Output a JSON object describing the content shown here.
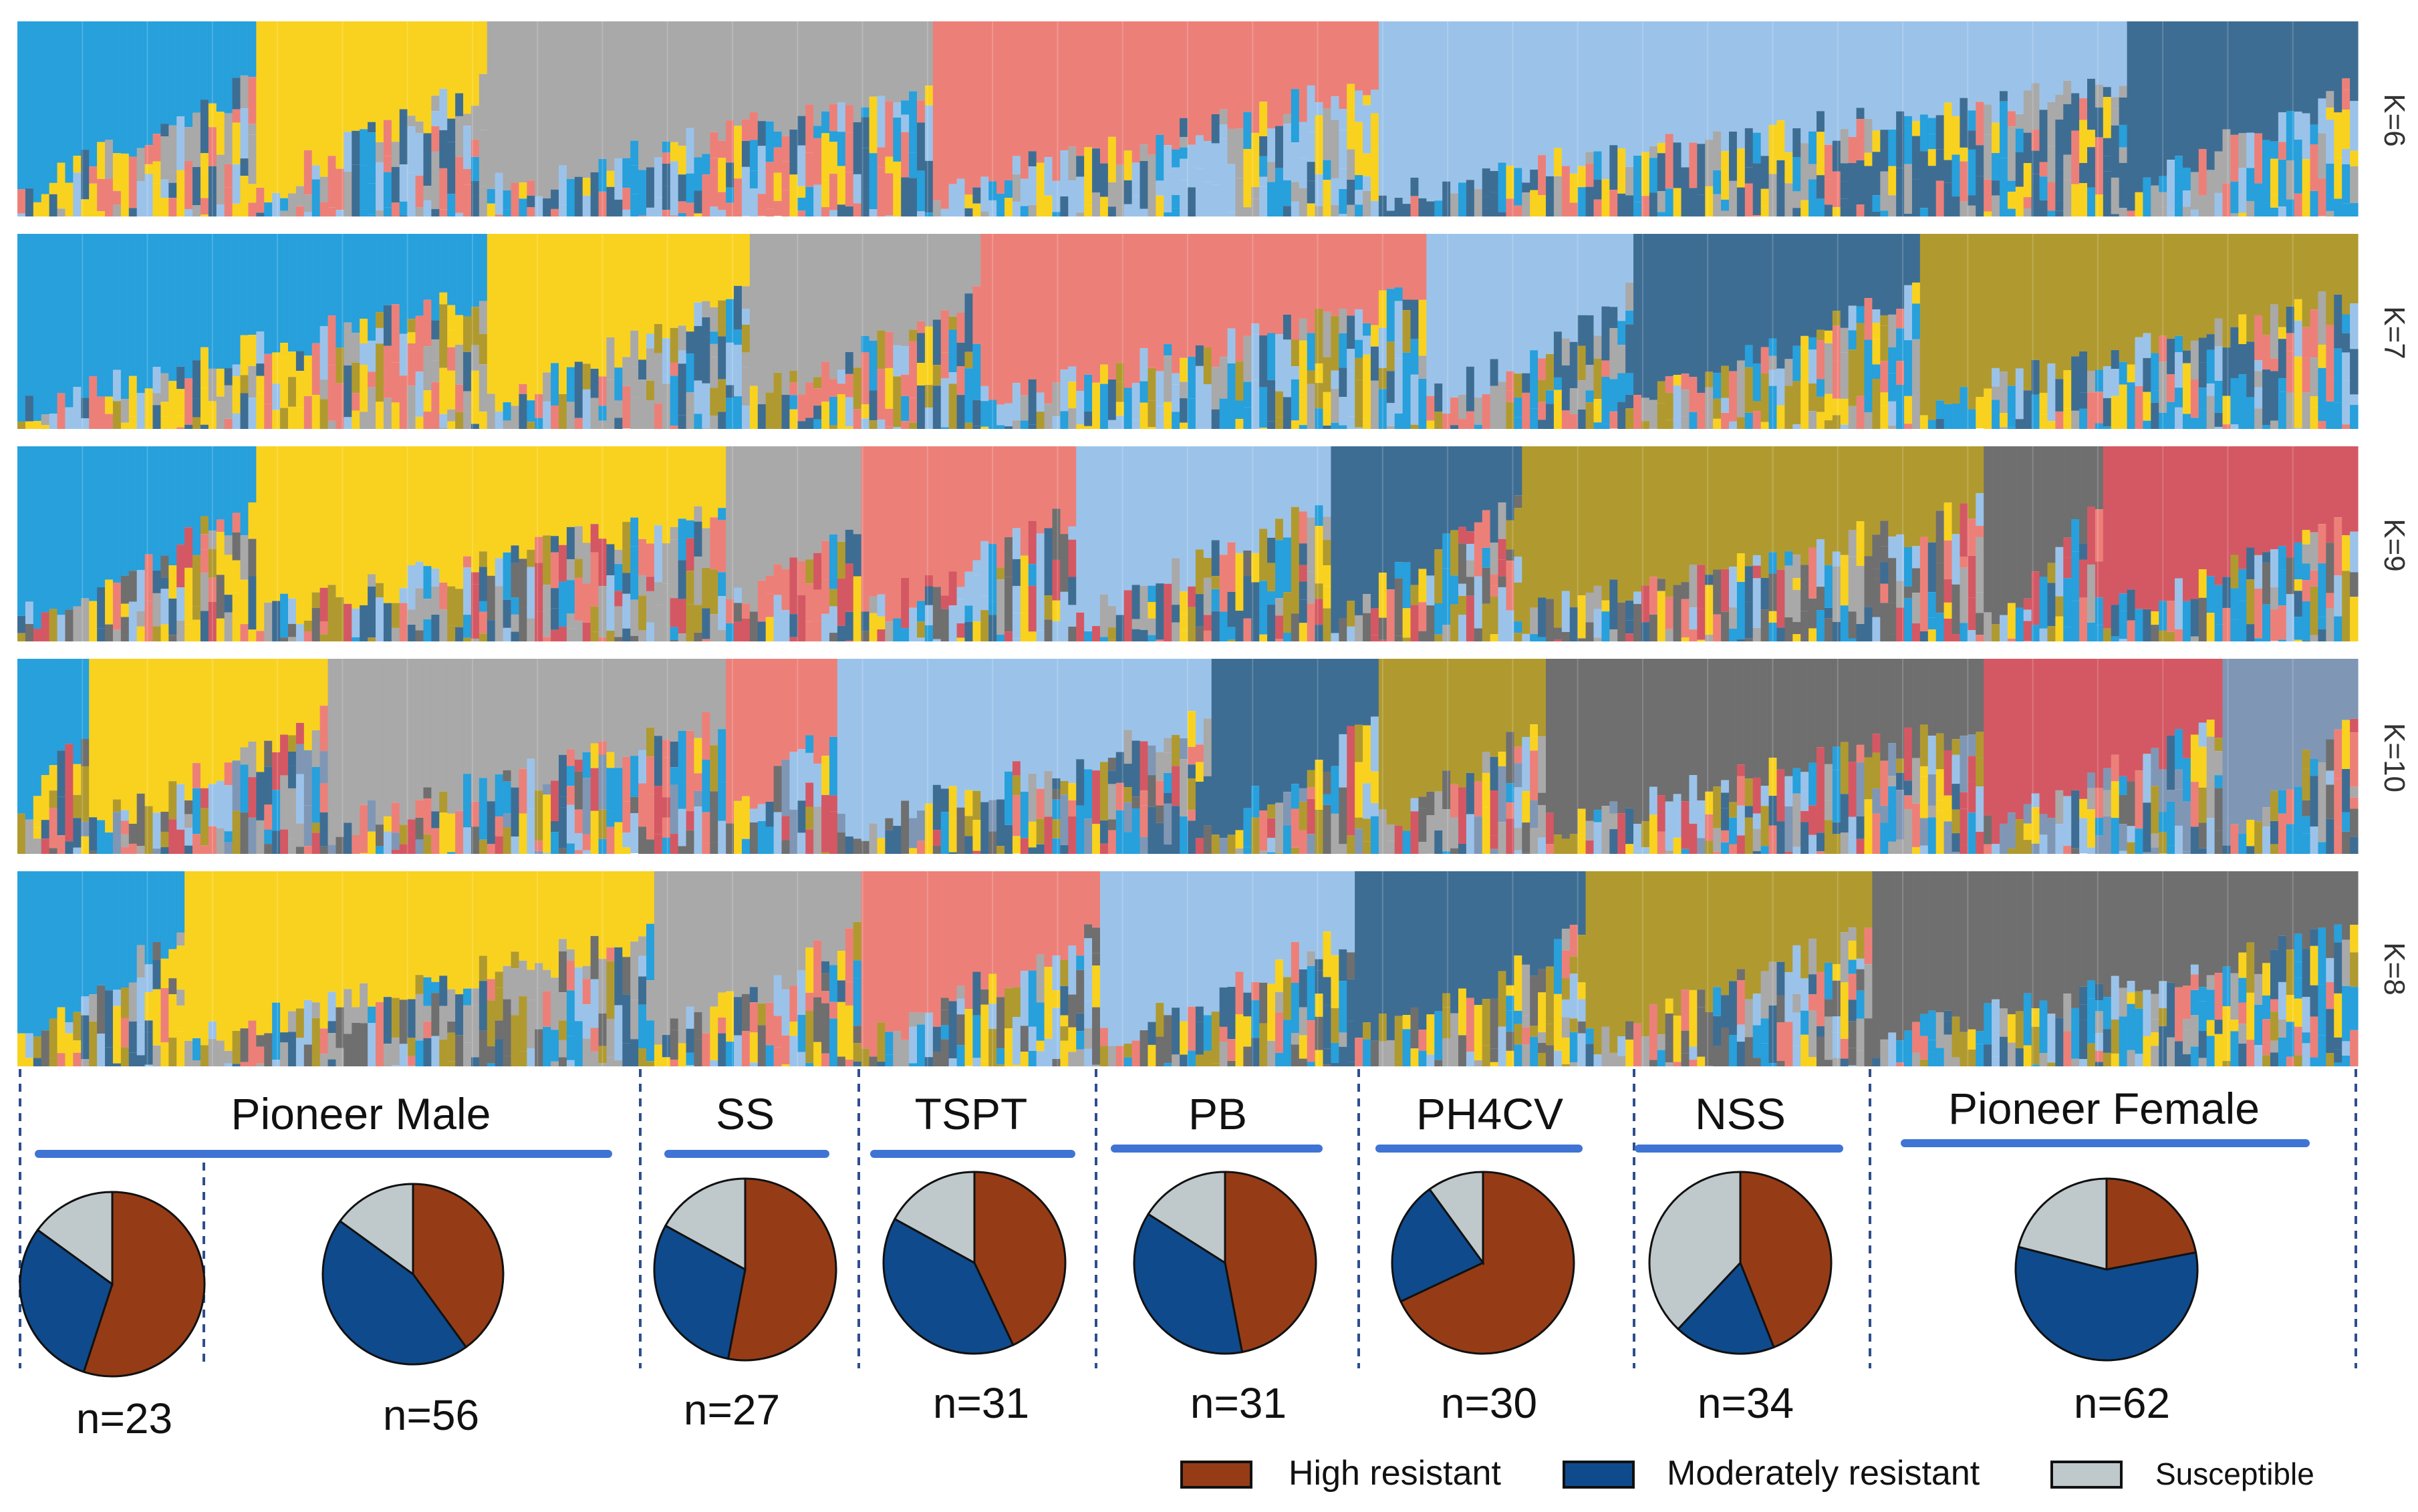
{
  "colors": {
    "cluster_blue": "#27a0dc",
    "cluster_yellow": "#f9d21f",
    "cluster_lightgray": "#a9a9a9",
    "cluster_salmon": "#ec8079",
    "cluster_lightblue": "#9bc3ea",
    "cluster_steel": "#3e6d93",
    "cluster_olive": "#b09a2f",
    "cluster_darkgray": "#6f6f6f",
    "cluster_crimson": "#d45863",
    "cluster_slate": "#7f97b5",
    "high_resistant": "#953c17",
    "moderately_resistant": "#0f4a8c",
    "susceptible": "#bfc9cc",
    "group_underline": "#3f74d4",
    "divider": "#2e4e8c"
  },
  "chart_data": [
    {
      "type": "stacked-bar (admixture)",
      "title": "K=6",
      "row_label": "K=6",
      "n_samples": 294,
      "cluster_order": [
        "cluster_blue",
        "cluster_yellow",
        "cluster_lightgray",
        "cluster_salmon",
        "cluster_lightblue",
        "cluster_steel"
      ]
    },
    {
      "type": "stacked-bar (admixture)",
      "title": "K=7",
      "row_label": "K=7",
      "n_samples": 294,
      "cluster_order": [
        "cluster_blue",
        "cluster_yellow",
        "cluster_lightgray",
        "cluster_salmon",
        "cluster_lightblue",
        "cluster_steel",
        "cluster_olive"
      ]
    },
    {
      "type": "stacked-bar (admixture)",
      "title": "K=9",
      "row_label": "K=9",
      "n_samples": 294,
      "cluster_order": [
        "cluster_blue",
        "cluster_yellow",
        "cluster_lightgray",
        "cluster_salmon",
        "cluster_lightblue",
        "cluster_steel",
        "cluster_olive",
        "cluster_darkgray",
        "cluster_crimson"
      ]
    },
    {
      "type": "stacked-bar (admixture)",
      "title": "K=10",
      "row_label": "K=10",
      "n_samples": 294,
      "cluster_order": [
        "cluster_blue",
        "cluster_yellow",
        "cluster_lightgray",
        "cluster_salmon",
        "cluster_lightblue",
        "cluster_steel",
        "cluster_olive",
        "cluster_darkgray",
        "cluster_crimson",
        "cluster_slate"
      ]
    },
    {
      "type": "stacked-bar (admixture)",
      "title": "K=8",
      "row_label": "K=8",
      "n_samples": 294,
      "cluster_order": [
        "cluster_blue",
        "cluster_yellow",
        "cluster_lightgray",
        "cluster_salmon",
        "cluster_lightblue",
        "cluster_steel",
        "cluster_olive",
        "cluster_darkgray"
      ]
    },
    {
      "type": "pie",
      "legend": [
        "High resistant",
        "Moderately resistant",
        "Susceptible"
      ],
      "groups": [
        {
          "name": "Pioneer Male",
          "subgroups": [
            {
              "n_label": "n=23",
              "values": {
                "high": 0.55,
                "moderate": 0.3,
                "susceptible": 0.15
              }
            },
            {
              "n_label": "n=56",
              "values": {
                "high": 0.4,
                "moderate": 0.45,
                "susceptible": 0.15
              }
            }
          ]
        },
        {
          "name": "SS",
          "subgroups": [
            {
              "n_label": "n=27",
              "values": {
                "high": 0.53,
                "moderate": 0.3,
                "susceptible": 0.17
              }
            }
          ]
        },
        {
          "name": "TSPT",
          "subgroups": [
            {
              "n_label": "n=31",
              "values": {
                "high": 0.43,
                "moderate": 0.4,
                "susceptible": 0.17
              }
            }
          ]
        },
        {
          "name": "PB",
          "subgroups": [
            {
              "n_label": "n=31",
              "values": {
                "high": 0.47,
                "moderate": 0.37,
                "susceptible": 0.16
              }
            }
          ]
        },
        {
          "name": "PH4CV",
          "subgroups": [
            {
              "n_label": "n=30",
              "values": {
                "high": 0.68,
                "moderate": 0.22,
                "susceptible": 0.1
              }
            }
          ]
        },
        {
          "name": "NSS",
          "subgroups": [
            {
              "n_label": "n=34",
              "values": {
                "high": 0.44,
                "moderate": 0.18,
                "susceptible": 0.38
              }
            }
          ]
        },
        {
          "name": "Pioneer Female",
          "subgroups": [
            {
              "n_label": "n=62",
              "values": {
                "high": 0.22,
                "moderate": 0.57,
                "susceptible": 0.21
              }
            }
          ]
        }
      ]
    }
  ],
  "legend": {
    "high": "High resistant",
    "moderate": "Moderately resistant",
    "susceptible": "Susceptible"
  }
}
